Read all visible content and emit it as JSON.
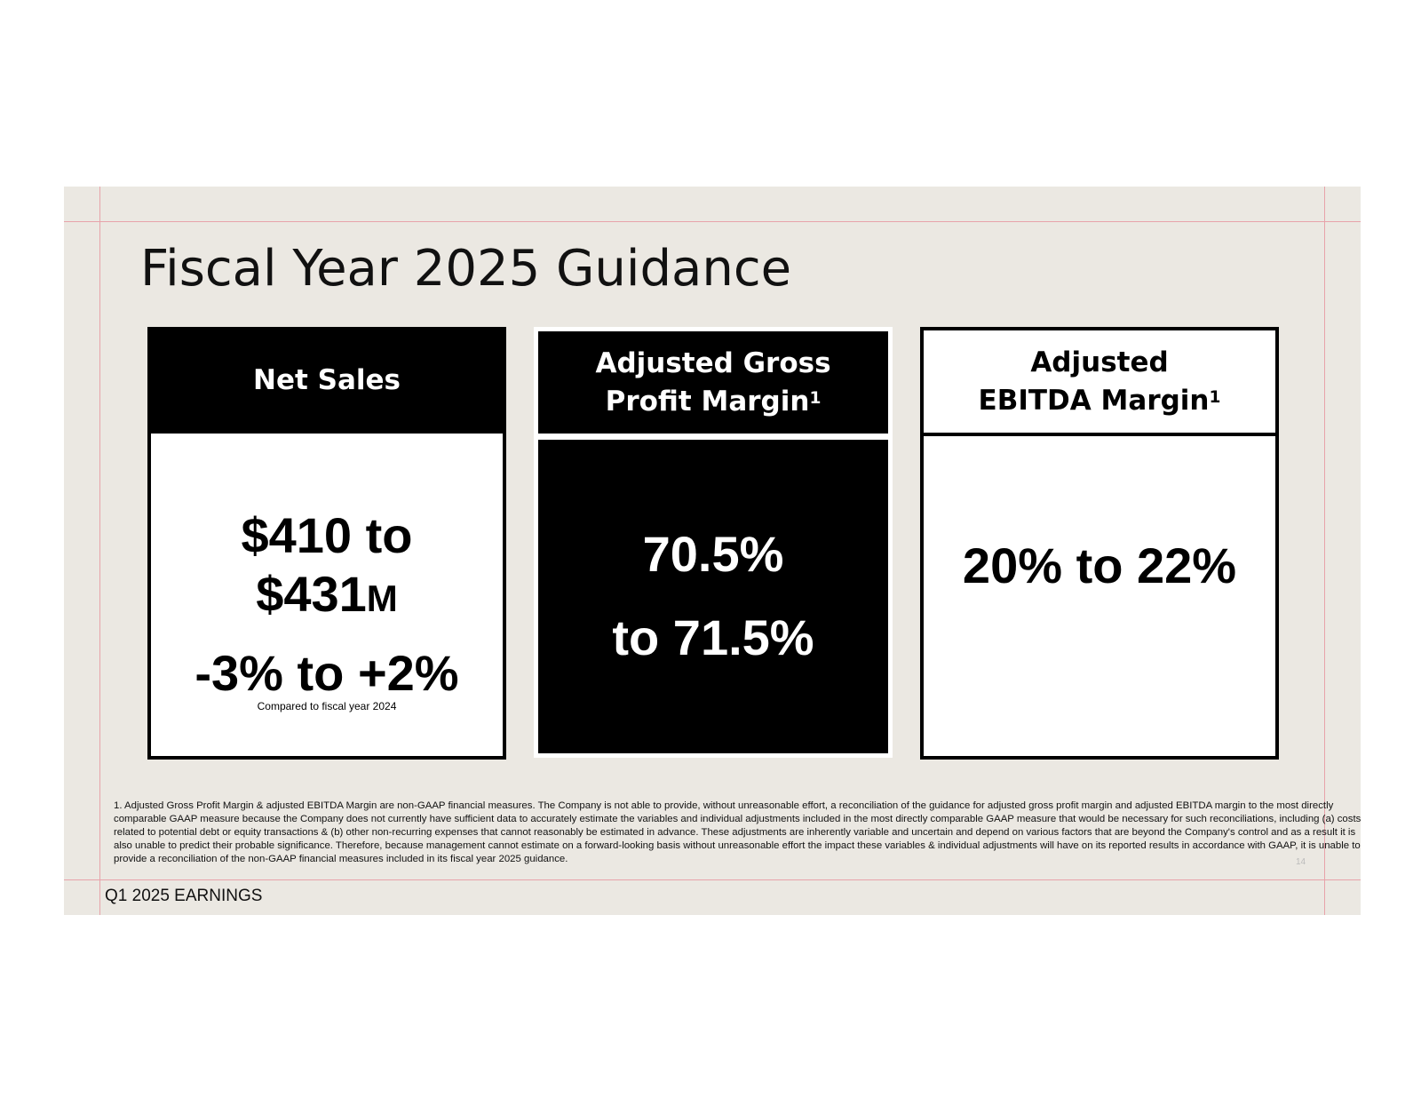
{
  "slide": {
    "title": "Fiscal Year 2025 Guidance",
    "cards": [
      {
        "heading": "Net Sales",
        "value_line1": "$410 to",
        "value_line2": "$431",
        "value_suffix": "M",
        "change": "-3% to +2%",
        "note": "Compared to fiscal year 2024"
      },
      {
        "heading": "Adjusted Gross Profit Margin",
        "heading_sup": "1",
        "value_line1": "70.5%",
        "value_line2": "to 71.5%"
      },
      {
        "heading": "Adjusted EBITDA Margin",
        "heading_sup": "1",
        "value_line1": "20% to 22%"
      }
    ],
    "footnote": "1. Adjusted Gross Profit Margin & adjusted EBITDA Margin are non-GAAP financial measures. The Company is not able to provide, without unreasonable effort, a reconciliation of the guidance for adjusted gross profit margin and adjusted EBITDA margin to the most directly comparable GAAP measure because the Company does not currently have sufficient data to accurately estimate the variables and individual adjustments included in the most directly comparable GAAP measure that would be necessary for such reconciliations, including (a) costs related to potential debt or equity transactions & (b) other non-recurring expenses that cannot reasonably be estimated in advance. These adjustments are inherently variable and uncertain and depend on various factors that are beyond the Company's control and as a result it is also unable to predict their probable significance. Therefore, because management cannot estimate on a forward-looking basis without unreasonable effort the impact these variables & individual adjustments will have on its reported results in accordance with GAAP, it is unable to provide a reconciliation of the non-GAAP financial measures included in its fiscal year 2025 guidance.",
    "page_number": "14",
    "footer": "Q1 2025 EARNINGS"
  }
}
